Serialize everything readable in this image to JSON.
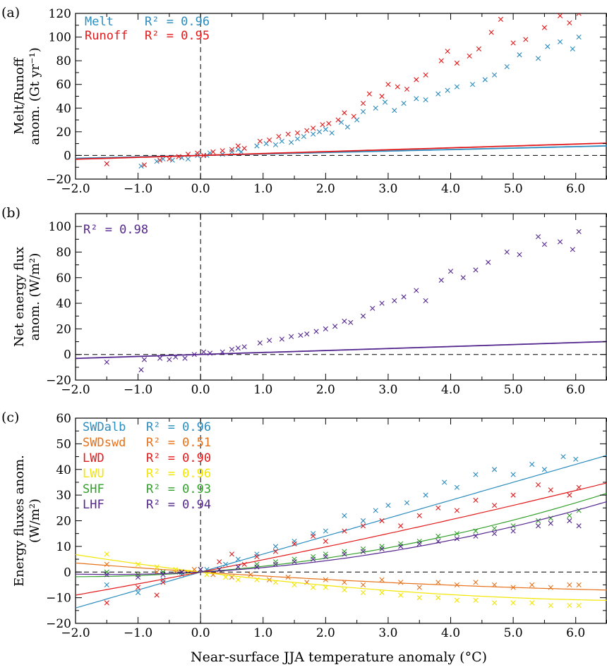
{
  "figure": {
    "xlabel": "Near-surface JJA temperature anomaly (°C)",
    "xlim": [
      -2.0,
      6.5
    ],
    "xticks": [
      -2.0,
      -1.0,
      0.0,
      1.0,
      2.0,
      3.0,
      4.0,
      5.0,
      6.0
    ],
    "xtick_labels": [
      "−2.0",
      "−1.0",
      "0.0",
      "1.0",
      "2.0",
      "3.0",
      "4.0",
      "5.0",
      "6.0"
    ]
  },
  "chart_data": [
    {
      "type": "scatter",
      "panel": "(a)",
      "ylabel_lines": [
        "Melt/Runoff",
        "anom. (Gt yr⁻¹)"
      ],
      "ylim": [
        -20,
        120
      ],
      "yticks": [
        -20,
        0,
        20,
        40,
        60,
        80,
        100,
        120
      ],
      "ytick_labels": [
        "−20",
        "0",
        "20",
        "40",
        "60",
        "80",
        "100",
        "120"
      ],
      "series": [
        {
          "name": "Melt",
          "r2": "R² = 0.96",
          "color": "#2b8cbe",
          "fit": [
            2.0,
            1.24,
            0.0
          ],
          "x": [
            -1.5,
            -0.95,
            -0.7,
            -0.6,
            -0.45,
            -0.3,
            -0.2,
            -0.05,
            0.1,
            0.15,
            0.35,
            0.5,
            0.6,
            0.65,
            0.9,
            1.05,
            1.2,
            1.3,
            1.45,
            1.55,
            1.65,
            1.8,
            1.9,
            2.0,
            2.1,
            2.25,
            2.35,
            2.5,
            2.6,
            2.8,
            2.95,
            3.1,
            3.25,
            3.45,
            3.6,
            3.8,
            3.95,
            4.1,
            4.35,
            4.55,
            4.7,
            4.9,
            5.1,
            5.4,
            5.55,
            5.75,
            5.95,
            6.05
          ],
          "y": [
            -7,
            -9,
            -5,
            -3,
            -4,
            -2,
            -3,
            0,
            0,
            2,
            1,
            3,
            5,
            3,
            8,
            10,
            9,
            12,
            11,
            14,
            16,
            18,
            20,
            22,
            19,
            28,
            24,
            30,
            37,
            40,
            45,
            38,
            44,
            48,
            47,
            52,
            55,
            58,
            60,
            64,
            68,
            75,
            85,
            82,
            92,
            96,
            90,
            100
          ]
        },
        {
          "name": "Runoff",
          "r2": "R² = 0.95",
          "color": "#e31a1c",
          "fit": [
            2.0,
            1.6,
            0.0
          ],
          "x": [
            -1.5,
            -0.9,
            -0.65,
            -0.5,
            -0.35,
            -0.2,
            -0.05,
            0.05,
            0.2,
            0.35,
            0.5,
            0.6,
            0.7,
            0.95,
            1.1,
            1.25,
            1.4,
            1.55,
            1.7,
            1.8,
            1.95,
            2.05,
            2.2,
            2.3,
            2.45,
            2.6,
            2.7,
            2.9,
            3.0,
            3.15,
            3.3,
            3.45,
            3.6,
            3.85,
            3.95,
            4.1,
            4.3,
            4.45,
            4.65,
            4.8,
            5.0,
            5.2,
            5.5,
            5.75,
            5.9,
            6.05
          ],
          "y": [
            -7,
            -8,
            -4,
            -3,
            -1,
            1,
            2,
            0,
            3,
            4,
            5,
            8,
            6,
            12,
            13,
            16,
            18,
            19,
            21,
            23,
            26,
            27,
            30,
            36,
            33,
            44,
            52,
            50,
            60,
            58,
            56,
            64,
            68,
            80,
            88,
            78,
            84,
            90,
            104,
            115,
            95,
            98,
            108,
            118,
            112,
            120
          ]
        }
      ]
    },
    {
      "type": "scatter",
      "panel": "(b)",
      "ylabel_lines": [
        "Net energy flux",
        "anom. (W/m²)"
      ],
      "ylim": [
        -20,
        110
      ],
      "yticks": [
        -20,
        0,
        20,
        40,
        60,
        80,
        100
      ],
      "ytick_labels": [
        "−20",
        "0",
        "20",
        "40",
        "60",
        "80",
        "100"
      ],
      "series": [
        {
          "name": "",
          "r2": "R² = 0.98",
          "color": "#54278f",
          "fit": [
            1.2,
            1.55,
            0.0
          ],
          "x": [
            -1.5,
            -0.95,
            -0.9,
            -0.65,
            -0.5,
            -0.4,
            -0.25,
            -0.1,
            0.05,
            0.15,
            0.35,
            0.5,
            0.6,
            0.7,
            0.95,
            1.1,
            1.3,
            1.45,
            1.6,
            1.7,
            1.85,
            2.0,
            2.15,
            2.3,
            2.4,
            2.6,
            2.75,
            2.9,
            3.1,
            3.25,
            3.45,
            3.6,
            3.85,
            4.0,
            4.2,
            4.4,
            4.6,
            4.9,
            5.1,
            5.4,
            5.5,
            5.75,
            5.95,
            6.05
          ],
          "y": [
            -6,
            -12,
            -4,
            -3,
            -4,
            -2,
            -3,
            0,
            2,
            1,
            2,
            4,
            5,
            6,
            9,
            11,
            12,
            14,
            15,
            16,
            18,
            20,
            22,
            26,
            25,
            30,
            36,
            40,
            42,
            45,
            50,
            42,
            58,
            65,
            60,
            66,
            72,
            80,
            78,
            92,
            86,
            88,
            82,
            96
          ]
        }
      ]
    },
    {
      "type": "scatter",
      "panel": "(c)",
      "ylabel_lines": [
        "Energy fluxes anom.",
        "(W/m²)"
      ],
      "ylim": [
        -20,
        60
      ],
      "yticks": [
        -20,
        -10,
        0,
        10,
        20,
        30,
        40,
        50,
        60
      ],
      "ytick_labels": [
        "−20",
        "−10",
        "0",
        "10",
        "20",
        "30",
        "40",
        "50",
        "60"
      ],
      "series": [
        {
          "name": "SWDalb",
          "r2": "R² = 0.96",
          "color": "#2b8cbe",
          "fit": [
            0.0,
            7.0,
            0.0
          ],
          "x": [
            -1.5,
            -1.0,
            -0.6,
            -0.3,
            0.1,
            0.4,
            0.6,
            0.9,
            1.2,
            1.5,
            1.8,
            2.0,
            2.3,
            2.6,
            2.8,
            3.0,
            3.3,
            3.6,
            3.9,
            4.1,
            4.4,
            4.7,
            5.0,
            5.3,
            5.5,
            5.8,
            6.0
          ],
          "y": [
            -5,
            -8,
            -3,
            -1,
            1,
            3,
            5,
            7,
            10,
            12,
            15,
            16,
            22,
            20,
            24,
            26,
            27,
            30,
            35,
            33,
            38,
            40,
            38,
            42,
            40,
            45,
            44
          ]
        },
        {
          "name": "SWDswd",
          "r2": "R² = 0.51",
          "color": "#e6711a",
          "fit": [
            0.0,
            -1.6,
            0.08
          ],
          "x": [
            -1.5,
            -1.0,
            -0.7,
            -0.4,
            -0.1,
            0.2,
            0.5,
            0.8,
            1.1,
            1.4,
            1.7,
            2.0,
            2.3,
            2.6,
            2.9,
            3.2,
            3.5,
            3.8,
            4.1,
            4.4,
            4.7,
            5.0,
            5.3,
            5.6,
            5.9,
            6.05
          ],
          "y": [
            3,
            -1,
            0,
            0,
            1,
            -1,
            -2,
            -1,
            -3,
            -2,
            -4,
            -3,
            -4,
            -5,
            -3,
            -4,
            -6,
            -4,
            -5,
            -4,
            -5,
            -6,
            -5,
            -6,
            -5,
            -5
          ]
        },
        {
          "name": "LWD",
          "r2": "R² = 0.90",
          "color": "#e31a1c",
          "fit": [
            0.0,
            4.7,
            0.1
          ],
          "x": [
            -1.5,
            -1.0,
            -0.7,
            -0.6,
            -0.3,
            0.0,
            0.3,
            0.5,
            0.7,
            0.9,
            1.2,
            1.5,
            1.8,
            2.0,
            2.3,
            2.6,
            2.9,
            3.2,
            3.5,
            3.8,
            4.1,
            4.4,
            4.7,
            5.0,
            5.4,
            5.6,
            5.9,
            6.05
          ],
          "y": [
            -12,
            -6,
            -9,
            -4,
            0,
            1,
            4,
            7,
            3,
            6,
            8,
            11,
            14,
            12,
            16,
            18,
            20,
            18,
            22,
            25,
            24,
            28,
            26,
            30,
            34,
            32,
            30,
            33
          ]
        },
        {
          "name": "LWU",
          "r2": "R² = 0.96",
          "color": "#f2e600",
          "fit": [
            0.0,
            -3.0,
            0.2
          ],
          "x": [
            -1.5,
            -1.0,
            -0.7,
            -0.4,
            -0.2,
            0.1,
            0.4,
            0.6,
            0.9,
            1.2,
            1.5,
            1.8,
            2.0,
            2.3,
            2.6,
            2.9,
            3.2,
            3.5,
            3.8,
            4.1,
            4.4,
            4.7,
            5.0,
            5.3,
            5.6,
            5.9,
            6.05
          ],
          "y": [
            7,
            3,
            2,
            1,
            0,
            -1,
            -2,
            -3,
            -3,
            -4,
            -5,
            -6,
            -6,
            -7,
            -8,
            -8,
            -9,
            -10,
            -10,
            -11,
            -11,
            -12,
            -12,
            -12,
            -13,
            -13,
            -13
          ]
        },
        {
          "name": "SHF",
          "r2": "R² = 0.93",
          "color": "#33a02c",
          "fit": [
            0.0,
            1.8,
            0.45
          ],
          "x": [
            -1.5,
            -1.0,
            -0.6,
            -0.3,
            0.0,
            0.3,
            0.6,
            0.9,
            1.2,
            1.5,
            1.8,
            2.0,
            2.3,
            2.6,
            2.9,
            3.2,
            3.5,
            3.8,
            4.1,
            4.4,
            4.7,
            5.0,
            5.4,
            5.6,
            5.9,
            6.05
          ],
          "y": [
            0,
            -1,
            0,
            0,
            1,
            1,
            2,
            3,
            4,
            5,
            6,
            7,
            8,
            9,
            10,
            11,
            12,
            14,
            15,
            16,
            17,
            18,
            20,
            21,
            22,
            24
          ]
        },
        {
          "name": "LHF",
          "r2": "R² = 0.94",
          "color": "#54278f",
          "fit": [
            0.0,
            1.3,
            0.45
          ],
          "x": [
            -1.5,
            -1.0,
            -0.6,
            -0.3,
            0.0,
            0.3,
            0.6,
            0.9,
            1.2,
            1.5,
            1.8,
            2.0,
            2.3,
            2.6,
            2.9,
            3.2,
            3.5,
            3.8,
            4.1,
            4.4,
            4.7,
            5.0,
            5.4,
            5.6,
            5.9,
            6.05
          ],
          "y": [
            -1,
            -2,
            -1,
            0,
            1,
            1,
            2,
            2,
            3,
            4,
            5,
            6,
            7,
            8,
            9,
            10,
            11,
            12,
            13,
            14,
            15,
            16,
            18,
            19,
            20,
            18
          ]
        }
      ]
    }
  ]
}
